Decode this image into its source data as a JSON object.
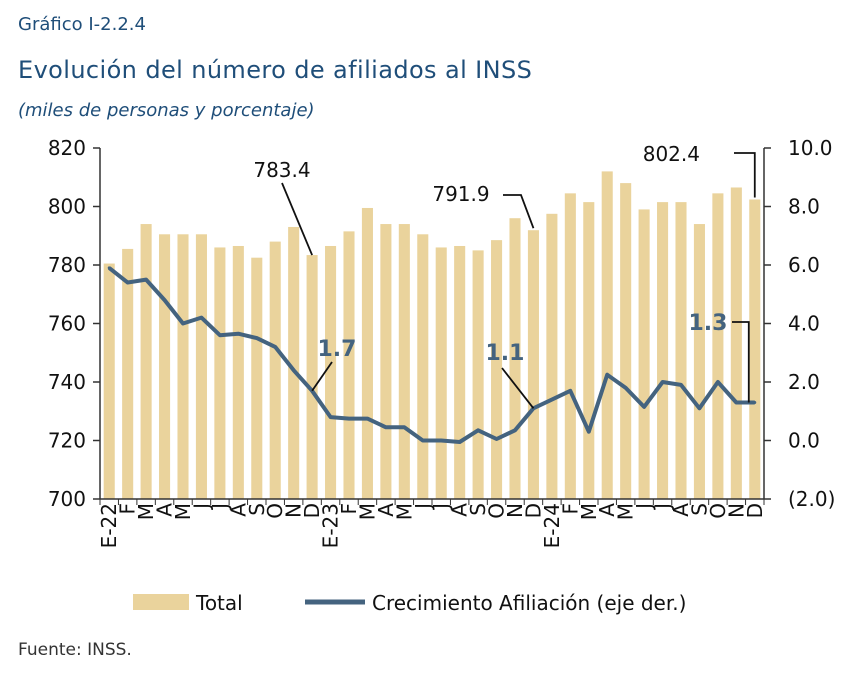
{
  "header": {
    "label": "Gráfico I-2.2.4",
    "title": "Evolución del número de afiliados al INSS",
    "subtitle": "(miles de personas y porcentaje)"
  },
  "footer": {
    "source": "Fuente: INSS."
  },
  "chart_data": {
    "type": "bar",
    "categories": [
      "E-22",
      "F",
      "M",
      "A",
      "M",
      "J",
      "J",
      "A",
      "S",
      "O",
      "N",
      "D",
      "E-23",
      "F",
      "M",
      "A",
      "M",
      "J",
      "J",
      "A",
      "S",
      "O",
      "N",
      "D",
      "E-24",
      "F",
      "M",
      "A",
      "M",
      "J",
      "J",
      "A",
      "S",
      "O",
      "N",
      "D"
    ],
    "series": [
      {
        "name": "Total",
        "type": "bar",
        "axis": "left",
        "color": "#ead39c",
        "values": [
          780.5,
          785.5,
          794,
          790.5,
          790.5,
          790.5,
          786,
          786.5,
          782.5,
          788,
          793,
          783.4,
          786.5,
          791.5,
          799.5,
          794,
          794,
          790.5,
          786,
          786.5,
          785,
          788.5,
          796,
          791.9,
          797.5,
          804.5,
          801.5,
          812,
          808,
          799,
          801.5,
          801.5,
          794,
          804.5,
          806.5,
          802.4
        ]
      },
      {
        "name": "Crecimiento Afiliación (eje der.)",
        "type": "line",
        "axis": "right",
        "color": "#44637f",
        "values": [
          5.9,
          5.4,
          5.5,
          4.8,
          4.0,
          4.2,
          3.6,
          3.65,
          3.5,
          3.2,
          2.4,
          1.7,
          0.8,
          0.75,
          0.75,
          0.45,
          0.45,
          0.0,
          0.0,
          -0.05,
          0.35,
          0.05,
          0.35,
          1.1,
          1.4,
          1.7,
          0.3,
          2.25,
          1.8,
          1.15,
          2.0,
          1.9,
          1.1,
          2.0,
          1.3,
          1.3
        ]
      }
    ],
    "y_left": {
      "ylim": [
        700,
        820
      ],
      "ticks": [
        "700",
        "720",
        "740",
        "760",
        "780",
        "800",
        "820"
      ]
    },
    "y_right": {
      "ylim": [
        -2,
        10
      ],
      "ticks": [
        "(2.0)",
        "0.0",
        "2.0",
        "4.0",
        "6.0",
        "8.0",
        "10.0"
      ]
    },
    "annotations": [
      {
        "text": "783.4",
        "category_index": 11,
        "series": "Total"
      },
      {
        "text": "791.9",
        "category_index": 23,
        "series": "Total"
      },
      {
        "text": "802.4",
        "category_index": 35,
        "series": "Total"
      },
      {
        "text": "1.7",
        "category_index": 11,
        "series": "Crecimiento Afiliación (eje der.)"
      },
      {
        "text": "1.1",
        "category_index": 23,
        "series": "Crecimiento Afiliación (eje der.)"
      },
      {
        "text": "1.3",
        "category_index": 35,
        "series": "Crecimiento Afiliación (eje der.)"
      }
    ],
    "legend": {
      "position": "bottom",
      "items": [
        "Total",
        "Crecimiento Afiliación (eje der.)"
      ]
    },
    "grid": false
  }
}
